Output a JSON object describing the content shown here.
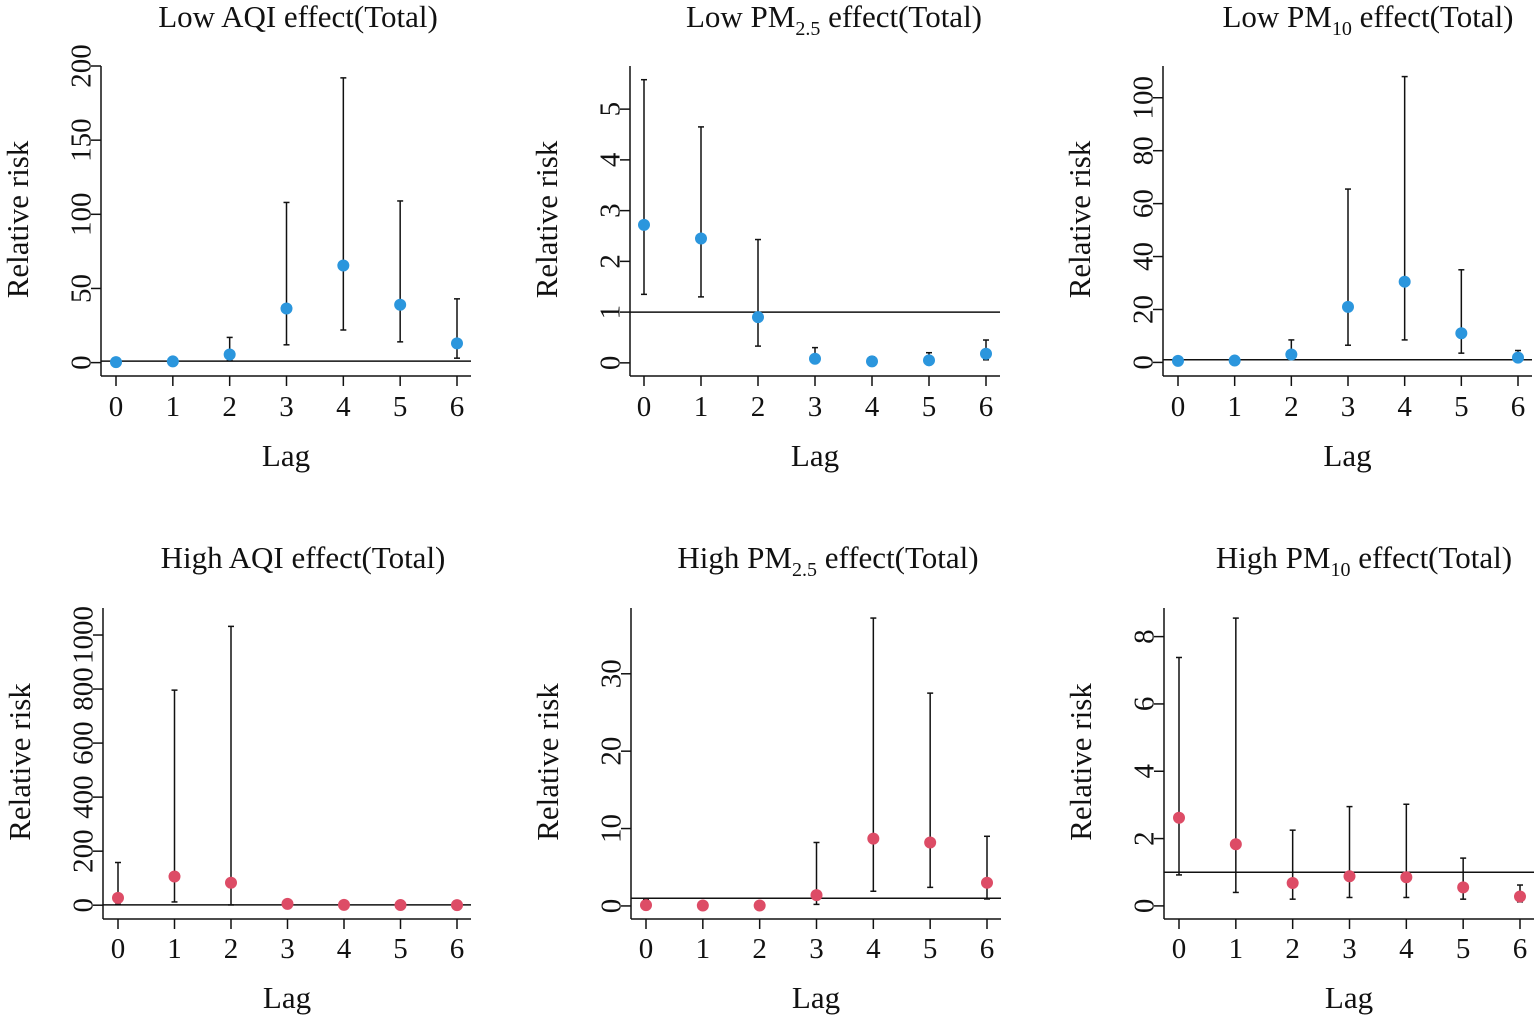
{
  "colors": {
    "low": "#2b96dd",
    "high": "#dd4c66",
    "ink": "#111111"
  },
  "xlabel": "Lag",
  "ylabel": "Relative risk",
  "chart_data": [
    {
      "type": "scatter",
      "title_parts": {
        "pre": "Low AQI effect(Total)",
        "sub": "",
        "post": ""
      },
      "color_key": "low",
      "x": [
        0,
        1,
        2,
        3,
        4,
        5,
        6
      ],
      "values": [
        0.3,
        0.8,
        5.5,
        36.5,
        65.5,
        39,
        13
      ],
      "ci_lower": [
        0.1,
        0.2,
        1.5,
        12,
        22,
        14,
        3
      ],
      "ci_upper": [
        1.2,
        2.5,
        17,
        108,
        192,
        109,
        43
      ],
      "reference_line": 1,
      "ylim": [
        -7,
        200
      ],
      "yticks": [
        0,
        50,
        100,
        150,
        200
      ],
      "ytick_labels": [
        "0",
        "50",
        "100",
        "150",
        "200"
      ],
      "xticks": [
        0,
        1,
        2,
        3,
        4,
        5,
        6
      ],
      "xlabel": "Lag",
      "ylabel": "Relative risk"
    },
    {
      "type": "scatter",
      "title_parts": {
        "pre": "Low  PM",
        "sub": "2.5",
        "post": " effect(Total)"
      },
      "color_key": "low",
      "x": [
        0,
        1,
        2,
        3,
        4,
        5,
        6
      ],
      "values": [
        2.72,
        2.45,
        0.9,
        0.08,
        0.03,
        0.05,
        0.18
      ],
      "ci_lower": [
        1.35,
        1.3,
        0.33,
        0.02,
        0.01,
        0.01,
        0.06
      ],
      "ci_upper": [
        5.58,
        4.65,
        2.43,
        0.3,
        0.12,
        0.2,
        0.45
      ],
      "reference_line": 1,
      "ylim": [
        -0.2,
        5.85
      ],
      "yticks": [
        0,
        1,
        2,
        3,
        4,
        5
      ],
      "ytick_labels": [
        "0",
        "1",
        "2",
        "3",
        "4",
        "5"
      ],
      "xticks": [
        0,
        1,
        2,
        3,
        4,
        5,
        6
      ],
      "xlabel": "Lag",
      "ylabel": "Relative risk"
    },
    {
      "type": "scatter",
      "title_parts": {
        "pre": "Low PM",
        "sub": "10",
        "post": " effect(Total)"
      },
      "color_key": "low",
      "x": [
        0,
        1,
        2,
        3,
        4,
        5,
        6
      ],
      "values": [
        0.6,
        0.7,
        3,
        21,
        30.5,
        11,
        1.8
      ],
      "ci_lower": [
        0.1,
        0.2,
        1,
        6.5,
        8.5,
        3.5,
        0.5
      ],
      "ci_upper": [
        1.5,
        2,
        8.5,
        65.5,
        108,
        35,
        4.5
      ],
      "reference_line": 1,
      "ylim": [
        -4,
        112
      ],
      "yticks": [
        0,
        20,
        40,
        60,
        80,
        100
      ],
      "ytick_labels": [
        "0",
        "20",
        "40",
        "60",
        "80",
        "100"
      ],
      "xticks": [
        0,
        1,
        2,
        3,
        4,
        5,
        6
      ],
      "xlabel": "Lag",
      "ylabel": "Relative risk"
    },
    {
      "type": "scatter",
      "title_parts": {
        "pre": "High AQI effect(Total)",
        "sub": "",
        "post": ""
      },
      "color_key": "high",
      "x": [
        0,
        1,
        2,
        3,
        4,
        5,
        6
      ],
      "values": [
        27,
        106,
        83,
        5,
        1,
        0.5,
        0.3
      ],
      "ci_lower": [
        3,
        12,
        1,
        0.1,
        0.1,
        0.1,
        0.1
      ],
      "ci_upper": [
        158,
        796,
        1032,
        12,
        4,
        2,
        1
      ],
      "reference_line": 1,
      "ylim": [
        -40,
        1100
      ],
      "yticks": [
        0,
        200,
        400,
        600,
        800,
        1000
      ],
      "ytick_labels": [
        "0",
        "200",
        "400",
        "600",
        "800",
        "1000"
      ],
      "xticks": [
        0,
        1,
        2,
        3,
        4,
        5,
        6
      ],
      "xlabel": "Lag",
      "ylabel": "Relative risk"
    },
    {
      "type": "scatter",
      "title_parts": {
        "pre": "High PM",
        "sub": "2.5",
        "post": " effect(Total)"
      },
      "color_key": "high",
      "x": [
        0,
        1,
        2,
        3,
        4,
        5,
        6
      ],
      "values": [
        0.1,
        0.05,
        0.05,
        1.4,
        8.7,
        8.2,
        3
      ],
      "ci_lower": [
        0.01,
        0.01,
        0.01,
        0.2,
        1.9,
        2.4,
        0.9
      ],
      "ci_upper": [
        0.8,
        0.5,
        0.4,
        8.2,
        37.2,
        27.5,
        9
      ],
      "reference_line": 1,
      "ylim": [
        -1.3,
        38.5
      ],
      "yticks": [
        0,
        10,
        20,
        30
      ],
      "ytick_labels": [
        "0",
        "10",
        "20",
        "30"
      ],
      "xticks": [
        0,
        1,
        2,
        3,
        4,
        5,
        6
      ],
      "xlabel": "Lag",
      "ylabel": "Relative risk"
    },
    {
      "type": "scatter",
      "title_parts": {
        "pre": "High PM",
        "sub": "10",
        "post": " effect(Total)"
      },
      "color_key": "high",
      "x": [
        0,
        1,
        2,
        3,
        4,
        5,
        6
      ],
      "values": [
        2.62,
        1.83,
        0.68,
        0.88,
        0.85,
        0.55,
        0.28
      ],
      "ci_lower": [
        0.92,
        0.4,
        0.2,
        0.25,
        0.25,
        0.2,
        0.12
      ],
      "ci_upper": [
        7.38,
        8.55,
        2.25,
        2.95,
        3.02,
        1.42,
        0.62
      ],
      "reference_line": 1,
      "ylim": [
        -0.3,
        8.85
      ],
      "yticks": [
        0,
        2,
        4,
        6,
        8
      ],
      "ytick_labels": [
        "0",
        "2",
        "4",
        "6",
        "8"
      ],
      "xticks": [
        0,
        1,
        2,
        3,
        4,
        5,
        6
      ],
      "xlabel": "Lag",
      "ylabel": "Relative risk"
    }
  ]
}
